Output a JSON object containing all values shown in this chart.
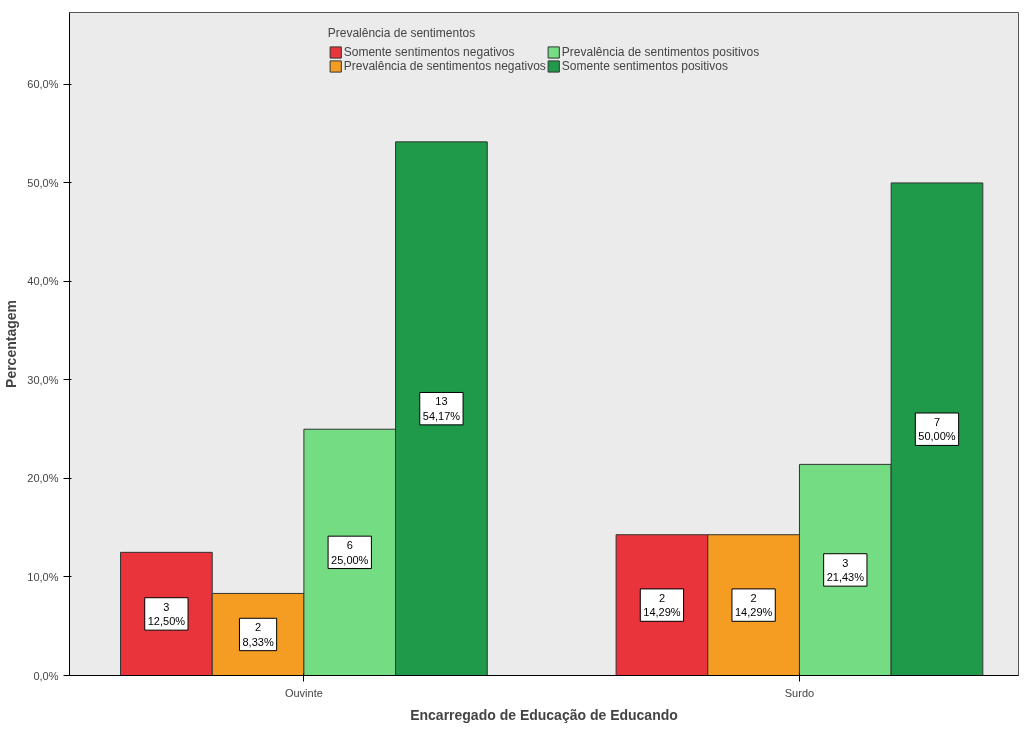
{
  "chart_data": {
    "type": "bar",
    "xlabel": "Encarregado de Educação de Educando",
    "ylabel": "Percentagem",
    "legend_title": "Prevalência de sentimentos",
    "categories": [
      "Ouvinte",
      "Surdo"
    ],
    "series": [
      {
        "name": "Somente sentimentos negativos",
        "color": "#e8343a",
        "values": [
          12.5,
          14.29
        ],
        "value_labels": [
          "3\n12,50%",
          "2\n14,29%"
        ]
      },
      {
        "name": "Prevalência de sentimentos negativos",
        "color": "#f59c22",
        "values": [
          8.33,
          14.29
        ],
        "value_labels": [
          "2\n8,33%",
          "2\n14,29%"
        ]
      },
      {
        "name": "Prevalência de sentimentos positivos",
        "color": "#74dc82",
        "values": [
          25.0,
          21.43
        ],
        "value_labels": [
          "6\n25,00%",
          "3\n21,43%"
        ]
      },
      {
        "name": "Somente sentimentos positivos",
        "color": "#1f9a4a",
        "values": [
          54.17,
          50.0
        ],
        "value_labels": [
          "13\n54,17%",
          "7\n50,00%"
        ]
      }
    ],
    "ylim": [
      0,
      67.3
    ],
    "yticks": [
      {
        "value": 0,
        "label": "0,0%"
      },
      {
        "value": 10,
        "label": "10,0%"
      },
      {
        "value": 20,
        "label": "20,0%"
      },
      {
        "value": 30,
        "label": "30,0%"
      },
      {
        "value": 40,
        "label": "40,0%"
      },
      {
        "value": 50,
        "label": "50,0%"
      },
      {
        "value": 60,
        "label": "60,0%"
      }
    ],
    "grid": false,
    "legend": "top"
  }
}
